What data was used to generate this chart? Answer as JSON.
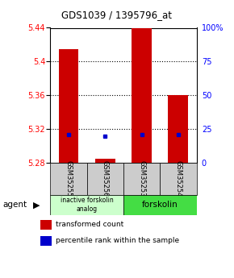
{
  "title": "GDS1039 / 1395796_at",
  "samples": [
    "GSM35255",
    "GSM35256",
    "GSM35253",
    "GSM35254"
  ],
  "x_positions": [
    1,
    2,
    3,
    4
  ],
  "bar_bottom": 5.28,
  "bar_tops": [
    5.415,
    5.285,
    5.44,
    5.36
  ],
  "percentile_values": [
    5.313,
    5.311,
    5.313,
    5.313
  ],
  "ylim_min": 5.28,
  "ylim_max": 5.44,
  "yticks": [
    5.28,
    5.32,
    5.36,
    5.4,
    5.44
  ],
  "ytick_labels": [
    "5.28",
    "5.32",
    "5.36",
    "5.4",
    "5.44"
  ],
  "y2ticks": [
    0,
    25,
    50,
    75,
    100
  ],
  "y2labels": [
    "0",
    "25",
    "50",
    "75",
    "100%"
  ],
  "bar_color": "#cc0000",
  "percentile_color": "#0000cc",
  "group1_label": "inactive forskolin\nanalog",
  "group2_label": "forskolin",
  "group1_color": "#ccffcc",
  "group2_color": "#44dd44",
  "sample_box_color": "#cccccc",
  "agent_label": "agent",
  "legend1": "transformed count",
  "legend2": "percentile rank within the sample",
  "bar_width": 0.55,
  "grid_lines": [
    5.32,
    5.36,
    5.4
  ],
  "title_color": "black",
  "left_tick_color": "red",
  "right_tick_color": "blue"
}
